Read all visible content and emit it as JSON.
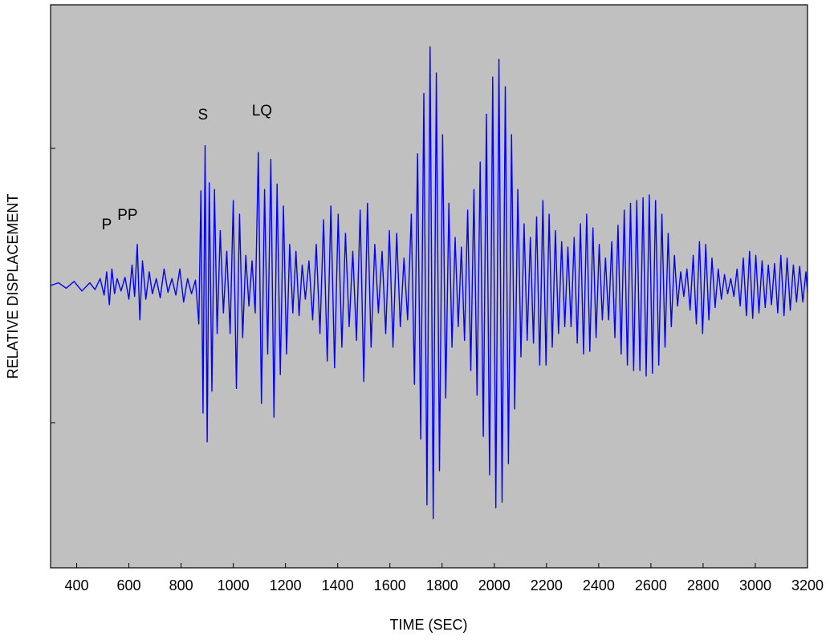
{
  "chart_data": {
    "type": "line",
    "title": "",
    "xlabel": "TIME (SEC)",
    "ylabel": "RELATIVE DISPLACEMENT",
    "xlim": [
      300,
      3200
    ],
    "ylim": [
      -1.0,
      1.0
    ],
    "x_ticks": [
      "400",
      "600",
      "800",
      "1000",
      "1200",
      "1400",
      "1600",
      "1800",
      "2000",
      "2200",
      "2400",
      "2600",
      "2800",
      "3000",
      "3200"
    ],
    "y_tick_labels_shown": false,
    "grid": false,
    "legend": "none",
    "colors": {
      "line": "#0000ff",
      "plot_background": "#c0c0c0",
      "frame": "#000000"
    },
    "annotations": [
      {
        "text": "P",
        "x": 515,
        "y": 0.41
      },
      {
        "text": "PP",
        "x": 595,
        "y": 0.48
      },
      {
        "text": "S",
        "x": 884,
        "y": 1.21
      },
      {
        "text": "LQ",
        "x": 1110,
        "y": 1.24
      }
    ],
    "series": [
      {
        "points": [
          [
            300,
            0.0
          ],
          [
            330,
            0.02
          ],
          [
            360,
            -0.02
          ],
          [
            390,
            0.03
          ],
          [
            420,
            -0.04
          ],
          [
            450,
            0.02
          ],
          [
            470,
            -0.03
          ],
          [
            490,
            0.05
          ],
          [
            505,
            -0.07
          ],
          [
            515,
            0.1
          ],
          [
            525,
            -0.14
          ],
          [
            535,
            0.12
          ],
          [
            545,
            -0.06
          ],
          [
            555,
            0.05
          ],
          [
            570,
            -0.04
          ],
          [
            585,
            0.06
          ],
          [
            600,
            -0.1
          ],
          [
            612,
            0.15
          ],
          [
            622,
            -0.08
          ],
          [
            632,
            0.3
          ],
          [
            642,
            -0.25
          ],
          [
            652,
            0.18
          ],
          [
            665,
            -0.1
          ],
          [
            678,
            0.1
          ],
          [
            690,
            -0.06
          ],
          [
            705,
            0.05
          ],
          [
            720,
            -0.09
          ],
          [
            735,
            0.12
          ],
          [
            750,
            -0.05
          ],
          [
            765,
            0.05
          ],
          [
            780,
            -0.07
          ],
          [
            795,
            0.12
          ],
          [
            810,
            -0.12
          ],
          [
            825,
            0.05
          ],
          [
            840,
            -0.06
          ],
          [
            855,
            0.04
          ],
          [
            868,
            -0.28
          ],
          [
            876,
            0.69
          ],
          [
            884,
            -0.93
          ],
          [
            892,
            1.02
          ],
          [
            900,
            -1.14
          ],
          [
            908,
            0.75
          ],
          [
            918,
            -0.77
          ],
          [
            928,
            0.7
          ],
          [
            938,
            -0.35
          ],
          [
            950,
            0.4
          ],
          [
            962,
            -0.2
          ],
          [
            975,
            0.25
          ],
          [
            988,
            -0.35
          ],
          [
            1000,
            0.62
          ],
          [
            1012,
            -0.75
          ],
          [
            1024,
            0.52
          ],
          [
            1036,
            -0.38
          ],
          [
            1048,
            0.22
          ],
          [
            1060,
            -0.15
          ],
          [
            1072,
            0.18
          ],
          [
            1084,
            -0.2
          ],
          [
            1096,
            0.97
          ],
          [
            1108,
            -0.86
          ],
          [
            1120,
            0.7
          ],
          [
            1132,
            -0.5
          ],
          [
            1144,
            0.92
          ],
          [
            1156,
            -0.96
          ],
          [
            1168,
            0.74
          ],
          [
            1180,
            -0.65
          ],
          [
            1192,
            0.58
          ],
          [
            1204,
            -0.5
          ],
          [
            1216,
            0.3
          ],
          [
            1228,
            -0.2
          ],
          [
            1240,
            0.25
          ],
          [
            1252,
            -0.22
          ],
          [
            1264,
            0.15
          ],
          [
            1276,
            -0.1
          ],
          [
            1290,
            0.18
          ],
          [
            1304,
            -0.25
          ],
          [
            1318,
            0.3
          ],
          [
            1332,
            -0.35
          ],
          [
            1346,
            0.48
          ],
          [
            1360,
            -0.55
          ],
          [
            1374,
            0.58
          ],
          [
            1388,
            -0.6
          ],
          [
            1402,
            0.52
          ],
          [
            1416,
            -0.45
          ],
          [
            1430,
            0.38
          ],
          [
            1444,
            -0.3
          ],
          [
            1458,
            0.25
          ],
          [
            1472,
            -0.4
          ],
          [
            1486,
            0.55
          ],
          [
            1500,
            -0.7
          ],
          [
            1514,
            0.6
          ],
          [
            1528,
            -0.45
          ],
          [
            1542,
            0.3
          ],
          [
            1556,
            -0.2
          ],
          [
            1570,
            0.25
          ],
          [
            1584,
            -0.35
          ],
          [
            1598,
            0.4
          ],
          [
            1612,
            -0.45
          ],
          [
            1626,
            0.38
          ],
          [
            1640,
            -0.3
          ],
          [
            1654,
            0.2
          ],
          [
            1668,
            -0.25
          ],
          [
            1682,
            0.52
          ],
          [
            1694,
            -0.72
          ],
          [
            1706,
            0.96
          ],
          [
            1718,
            -1.12
          ],
          [
            1730,
            1.4
          ],
          [
            1742,
            -1.6
          ],
          [
            1754,
            1.74
          ],
          [
            1766,
            -1.7
          ],
          [
            1778,
            1.55
          ],
          [
            1790,
            -1.35
          ],
          [
            1802,
            1.1
          ],
          [
            1814,
            -0.82
          ],
          [
            1826,
            0.6
          ],
          [
            1838,
            -0.45
          ],
          [
            1850,
            0.35
          ],
          [
            1862,
            -0.3
          ],
          [
            1874,
            0.28
          ],
          [
            1886,
            -0.4
          ],
          [
            1898,
            0.55
          ],
          [
            1910,
            -0.62
          ],
          [
            1922,
            0.7
          ],
          [
            1934,
            -0.8
          ],
          [
            1946,
            0.9
          ],
          [
            1958,
            -1.1
          ],
          [
            1970,
            1.25
          ],
          [
            1982,
            -1.38
          ],
          [
            1994,
            1.52
          ],
          [
            2006,
            -1.62
          ],
          [
            2018,
            1.65
          ],
          [
            2030,
            -1.58
          ],
          [
            2042,
            1.45
          ],
          [
            2054,
            -1.3
          ],
          [
            2066,
            1.1
          ],
          [
            2078,
            -0.9
          ],
          [
            2090,
            0.7
          ],
          [
            2102,
            -0.52
          ],
          [
            2114,
            0.45
          ],
          [
            2126,
            -0.4
          ],
          [
            2138,
            0.35
          ],
          [
            2150,
            -0.42
          ],
          [
            2162,
            0.5
          ],
          [
            2174,
            -0.58
          ],
          [
            2186,
            0.62
          ],
          [
            2198,
            -0.58
          ],
          [
            2210,
            0.52
          ],
          [
            2222,
            -0.45
          ],
          [
            2234,
            0.4
          ],
          [
            2246,
            -0.35
          ],
          [
            2258,
            0.32
          ],
          [
            2270,
            -0.3
          ],
          [
            2282,
            0.28
          ],
          [
            2294,
            -0.3
          ],
          [
            2306,
            0.35
          ],
          [
            2318,
            -0.42
          ],
          [
            2330,
            0.45
          ],
          [
            2342,
            -0.5
          ],
          [
            2354,
            0.52
          ],
          [
            2366,
            -0.48
          ],
          [
            2378,
            0.42
          ],
          [
            2390,
            -0.38
          ],
          [
            2402,
            0.3
          ],
          [
            2414,
            -0.25
          ],
          [
            2426,
            0.2
          ],
          [
            2438,
            -0.25
          ],
          [
            2450,
            0.32
          ],
          [
            2462,
            -0.38
          ],
          [
            2474,
            0.44
          ],
          [
            2486,
            -0.5
          ],
          [
            2498,
            0.55
          ],
          [
            2510,
            -0.58
          ],
          [
            2522,
            0.6
          ],
          [
            2534,
            -0.62
          ],
          [
            2546,
            0.62
          ],
          [
            2558,
            -0.62
          ],
          [
            2570,
            0.64
          ],
          [
            2582,
            -0.66
          ],
          [
            2594,
            0.66
          ],
          [
            2606,
            -0.64
          ],
          [
            2618,
            0.62
          ],
          [
            2630,
            -0.58
          ],
          [
            2642,
            0.52
          ],
          [
            2654,
            -0.45
          ],
          [
            2666,
            0.38
          ],
          [
            2678,
            -0.3
          ],
          [
            2690,
            0.22
          ],
          [
            2702,
            -0.15
          ],
          [
            2714,
            0.1
          ],
          [
            2726,
            -0.08
          ],
          [
            2738,
            0.12
          ],
          [
            2750,
            -0.18
          ],
          [
            2762,
            0.22
          ],
          [
            2774,
            -0.28
          ],
          [
            2786,
            0.32
          ],
          [
            2798,
            -0.35
          ],
          [
            2810,
            0.3
          ],
          [
            2822,
            -0.25
          ],
          [
            2834,
            0.2
          ],
          [
            2846,
            -0.16
          ],
          [
            2858,
            0.12
          ],
          [
            2870,
            -0.1
          ],
          [
            2882,
            0.08
          ],
          [
            2894,
            -0.06
          ],
          [
            2906,
            0.05
          ],
          [
            2918,
            -0.08
          ],
          [
            2930,
            0.12
          ],
          [
            2942,
            -0.15
          ],
          [
            2954,
            0.2
          ],
          [
            2966,
            -0.22
          ],
          [
            2978,
            0.25
          ],
          [
            2990,
            -0.24
          ],
          [
            3002,
            0.22
          ],
          [
            3014,
            -0.2
          ],
          [
            3026,
            0.18
          ],
          [
            3038,
            -0.16
          ],
          [
            3050,
            0.15
          ],
          [
            3062,
            -0.14
          ],
          [
            3074,
            0.16
          ],
          [
            3086,
            -0.2
          ],
          [
            3098,
            0.22
          ],
          [
            3110,
            -0.22
          ],
          [
            3122,
            0.2
          ],
          [
            3134,
            -0.18
          ],
          [
            3146,
            0.15
          ],
          [
            3158,
            -0.12
          ],
          [
            3170,
            0.14
          ],
          [
            3182,
            -0.12
          ],
          [
            3194,
            0.1
          ],
          [
            3200,
            -0.05
          ]
        ]
      }
    ]
  }
}
